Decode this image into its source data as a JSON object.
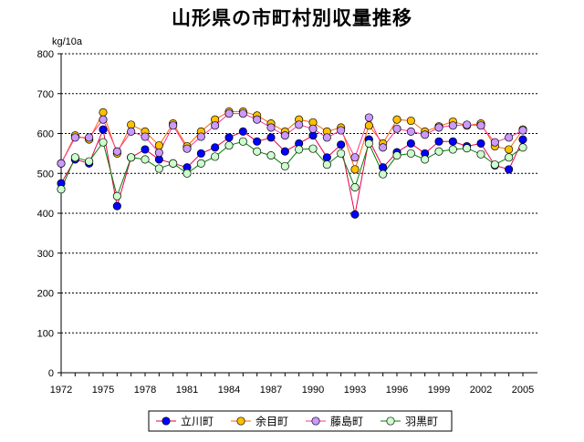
{
  "chart_data": {
    "type": "line",
    "title": "山形県の市町村別収量推移",
    "ylabel": "kg/10a",
    "xlabel": "",
    "ylim": [
      0,
      800
    ],
    "yticks": [
      0,
      100,
      200,
      300,
      400,
      500,
      600,
      700,
      800
    ],
    "grid": true,
    "legend_position": "bottom",
    "x": [
      1972,
      1973,
      1974,
      1975,
      1976,
      1977,
      1978,
      1979,
      1980,
      1981,
      1982,
      1983,
      1984,
      1985,
      1986,
      1987,
      1988,
      1989,
      1990,
      1991,
      1992,
      1993,
      1994,
      1995,
      1996,
      1997,
      1998,
      1999,
      2000,
      2001,
      2002,
      2003,
      2004,
      2005
    ],
    "xticks": [
      1972,
      1975,
      1978,
      1981,
      1984,
      1987,
      1990,
      1993,
      1996,
      1999,
      2002,
      2005
    ],
    "series": [
      {
        "name": "立川町",
        "line_color": "#e6004c",
        "marker_color": "#0000ff",
        "values": [
          475,
          535,
          525,
          610,
          418,
          540,
          560,
          535,
          525,
          515,
          550,
          565,
          590,
          605,
          580,
          590,
          555,
          575,
          595,
          540,
          572,
          397,
          585,
          515,
          553,
          575,
          550,
          580,
          580,
          568,
          575,
          520,
          510,
          585
        ]
      },
      {
        "name": "余目町",
        "line_color": "#ff6600",
        "marker_color": "#ffc000",
        "values": [
          525,
          595,
          585,
          653,
          550,
          622,
          605,
          570,
          625,
          568,
          605,
          635,
          655,
          655,
          645,
          625,
          605,
          635,
          628,
          605,
          615,
          510,
          620,
          575,
          635,
          632,
          605,
          618,
          630,
          620,
          625,
          568,
          560,
          610
        ]
      },
      {
        "name": "藤島町",
        "line_color": "#ff3399",
        "marker_color": "#cc99ff",
        "values": [
          525,
          590,
          590,
          635,
          555,
          605,
          592,
          552,
          620,
          562,
          592,
          620,
          650,
          650,
          635,
          615,
          595,
          622,
          612,
          590,
          608,
          540,
          640,
          565,
          612,
          605,
          597,
          615,
          620,
          622,
          620,
          578,
          590,
          608
        ]
      },
      {
        "name": "羽黒町",
        "line_color": "#008000",
        "marker_color": "#ccffcc",
        "values": [
          460,
          540,
          530,
          578,
          443,
          540,
          535,
          512,
          525,
          500,
          525,
          542,
          570,
          580,
          555,
          545,
          518,
          560,
          562,
          522,
          550,
          465,
          575,
          498,
          545,
          550,
          535,
          555,
          560,
          563,
          548,
          522,
          540,
          565
        ]
      }
    ]
  }
}
